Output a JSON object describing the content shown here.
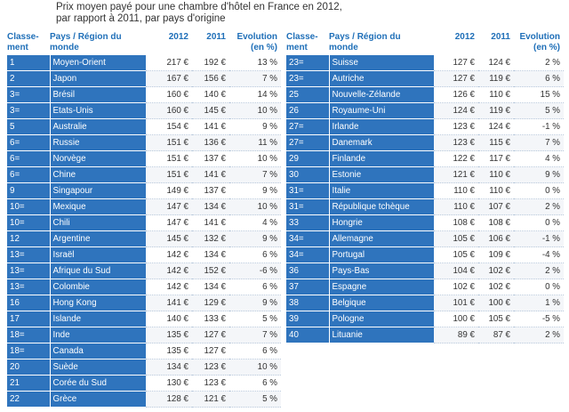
{
  "title": {
    "line1": "Prix moyen payé pour une chambre d'hôtel en France en 2012,",
    "line2": "par rapport à 2011, par pays d'origine"
  },
  "headers": {
    "rank_line1": "Classe-",
    "rank_line2": "ment",
    "country_line1": "Pays / Région du",
    "country_line2": "monde",
    "y2012": "2012",
    "y2011": "2011",
    "evo_line1": "Evolution",
    "evo_line2": "(en  %)"
  },
  "left": [
    {
      "rank": "1",
      "country": "Moyen-Orient",
      "p2012": "217 €",
      "p2011": "192 €",
      "evo": "13 %"
    },
    {
      "rank": "2",
      "country": "Japon",
      "p2012": "167 €",
      "p2011": "156 €",
      "evo": "7 %"
    },
    {
      "rank": "3=",
      "country": "Brésil",
      "p2012": "160 €",
      "p2011": "140 €",
      "evo": "14 %"
    },
    {
      "rank": "3=",
      "country": "Etats-Unis",
      "p2012": "160 €",
      "p2011": "145 €",
      "evo": "10 %"
    },
    {
      "rank": "5",
      "country": "Australie",
      "p2012": "154 €",
      "p2011": "141 €",
      "evo": "9 %"
    },
    {
      "rank": "6=",
      "country": "Russie",
      "p2012": "151 €",
      "p2011": "136 €",
      "evo": "11 %"
    },
    {
      "rank": "6=",
      "country": "Norvège",
      "p2012": "151 €",
      "p2011": "137 €",
      "evo": "10 %"
    },
    {
      "rank": "6=",
      "country": "Chine",
      "p2012": "151 €",
      "p2011": "141 €",
      "evo": "7 %"
    },
    {
      "rank": "9",
      "country": "Singapour",
      "p2012": "149 €",
      "p2011": "137 €",
      "evo": "9 %"
    },
    {
      "rank": "10=",
      "country": "Mexique",
      "p2012": "147 €",
      "p2011": "134 €",
      "evo": "10 %"
    },
    {
      "rank": "10=",
      "country": "Chili",
      "p2012": "147 €",
      "p2011": "141 €",
      "evo": "4 %"
    },
    {
      "rank": "12",
      "country": "Argentine",
      "p2012": "145 €",
      "p2011": "132 €",
      "evo": "9 %"
    },
    {
      "rank": "13=",
      "country": "Israël",
      "p2012": "142 €",
      "p2011": "134 €",
      "evo": "6 %"
    },
    {
      "rank": "13=",
      "country": "Afrique du Sud",
      "p2012": "142 €",
      "p2011": "152 €",
      "evo": "-6 %"
    },
    {
      "rank": "13=",
      "country": "Colombie",
      "p2012": "142 €",
      "p2011": "134 €",
      "evo": "6 %"
    },
    {
      "rank": "16",
      "country": "Hong Kong",
      "p2012": "141 €",
      "p2011": "129 €",
      "evo": "9 %"
    },
    {
      "rank": "17",
      "country": "Islande",
      "p2012": "140 €",
      "p2011": "133 €",
      "evo": "5 %"
    },
    {
      "rank": "18=",
      "country": "Inde",
      "p2012": "135 €",
      "p2011": "127 €",
      "evo": "7 %"
    },
    {
      "rank": "18=",
      "country": "Canada",
      "p2012": "135 €",
      "p2011": "127 €",
      "evo": "6 %"
    },
    {
      "rank": "20",
      "country": "Suède",
      "p2012": "134 €",
      "p2011": "123 €",
      "evo": "10 %"
    },
    {
      "rank": "21",
      "country": "Corée du Sud",
      "p2012": "130 €",
      "p2011": "123 €",
      "evo": "6 %"
    },
    {
      "rank": "22",
      "country": "Grèce",
      "p2012": "128 €",
      "p2011": "121 €",
      "evo": "5 %"
    }
  ],
  "right": [
    {
      "rank": "23=",
      "country": "Suisse",
      "p2012": "127 €",
      "p2011": "124 €",
      "evo": "2 %"
    },
    {
      "rank": "23=",
      "country": "Autriche",
      "p2012": "127 €",
      "p2011": "119 €",
      "evo": "6 %"
    },
    {
      "rank": "25",
      "country": "Nouvelle-Zélande",
      "p2012": "126 €",
      "p2011": "110 €",
      "evo": "15 %"
    },
    {
      "rank": "26",
      "country": "Royaume-Uni",
      "p2012": "124 €",
      "p2011": "119 €",
      "evo": "5 %"
    },
    {
      "rank": "27=",
      "country": "Irlande",
      "p2012": "123 €",
      "p2011": "124 €",
      "evo": "-1 %"
    },
    {
      "rank": "27=",
      "country": "Danemark",
      "p2012": "123 €",
      "p2011": "115 €",
      "evo": "7 %"
    },
    {
      "rank": "29",
      "country": "Finlande",
      "p2012": "122 €",
      "p2011": "117 €",
      "evo": "4 %"
    },
    {
      "rank": "30",
      "country": "Estonie",
      "p2012": "121 €",
      "p2011": "110 €",
      "evo": "9 %"
    },
    {
      "rank": "31=",
      "country": "Italie",
      "p2012": "110 €",
      "p2011": "110 €",
      "evo": "0 %"
    },
    {
      "rank": "31=",
      "country": "République tchèque",
      "p2012": "110 €",
      "p2011": "107 €",
      "evo": "2 %"
    },
    {
      "rank": "33",
      "country": "Hongrie",
      "p2012": "108 €",
      "p2011": "108 €",
      "evo": "0 %"
    },
    {
      "rank": "34=",
      "country": "Allemagne",
      "p2012": "105 €",
      "p2011": "106 €",
      "evo": "-1 %"
    },
    {
      "rank": "34=",
      "country": "Portugal",
      "p2012": "105 €",
      "p2011": "109 €",
      "evo": "-4 %"
    },
    {
      "rank": "36",
      "country": "Pays-Bas",
      "p2012": "104 €",
      "p2011": "102 €",
      "evo": "2 %"
    },
    {
      "rank": "37",
      "country": "Espagne",
      "p2012": "102 €",
      "p2011": "102 €",
      "evo": "0 %"
    },
    {
      "rank": "38",
      "country": "Belgique",
      "p2012": "101 €",
      "p2011": "100 €",
      "evo": "1 %"
    },
    {
      "rank": "39",
      "country": "Pologne",
      "p2012": "100 €",
      "p2011": "105 €",
      "evo": "-5 %"
    },
    {
      "rank": "40",
      "country": "Lituanie",
      "p2012": "89 €",
      "p2011": "87 €",
      "evo": "2 %"
    }
  ]
}
